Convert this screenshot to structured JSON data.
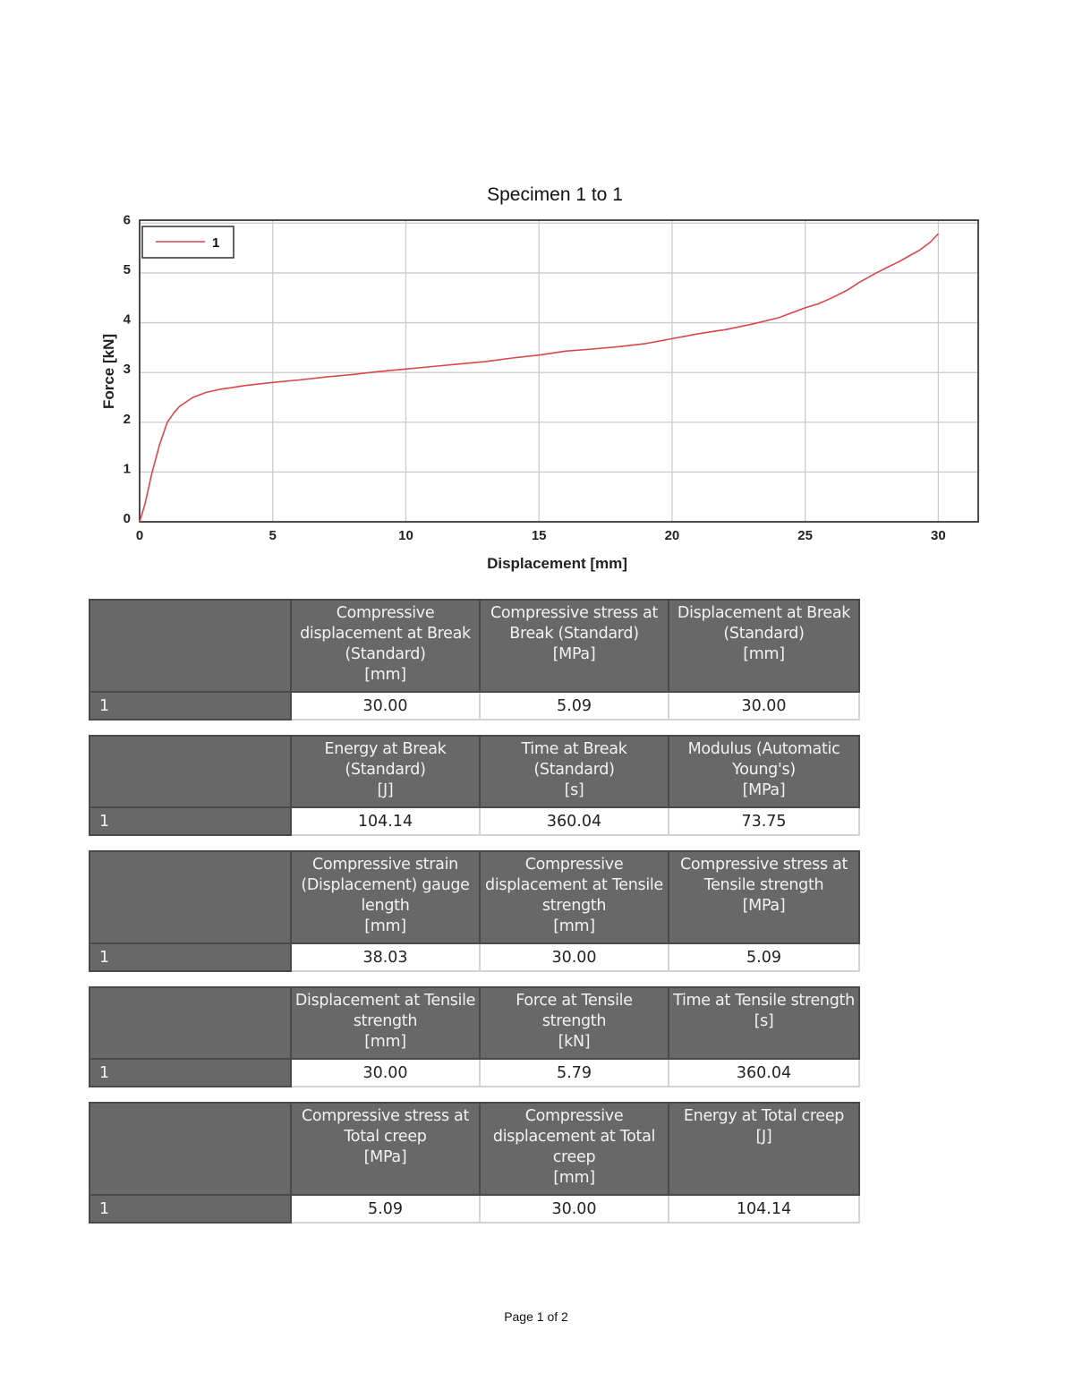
{
  "chart": {
    "title": "Specimen 1 to 1",
    "xlabel": "Displacement [mm]",
    "ylabel": "Force [kN]",
    "legend": [
      {
        "label": "1",
        "color": "#d9474b"
      }
    ]
  },
  "chart_data": {
    "type": "line",
    "title": "Specimen 1 to 1",
    "xlabel": "Displacement [mm]",
    "ylabel": "Force [kN]",
    "xlim": [
      0,
      31.5
    ],
    "ylim": [
      0,
      6.06
    ],
    "xticks": [
      0,
      5,
      10,
      15,
      20,
      25,
      30
    ],
    "yticks": [
      0,
      1,
      2,
      3,
      4,
      5,
      6
    ],
    "grid": true,
    "legend_position": "upper left",
    "series": [
      {
        "name": "1",
        "color": "#d9474b",
        "x": [
          0,
          0.2,
          0.47,
          0.75,
          1.04,
          1.3,
          1.5,
          2.0,
          2.5,
          3.0,
          4.0,
          5.0,
          6.0,
          7.0,
          8.0,
          9.0,
          10.0,
          11.0,
          12.0,
          13.0,
          14.0,
          15.0,
          16.0,
          17.0,
          18.0,
          19.0,
          20.0,
          21.0,
          22.0,
          23.0,
          24.0,
          25.0,
          25.5,
          26.0,
          26.6,
          27.0,
          27.6,
          28.0,
          28.5,
          28.9,
          29.3,
          29.7,
          30.0
        ],
        "y": [
          0,
          0.35,
          1.0,
          1.55,
          2.0,
          2.2,
          2.32,
          2.5,
          2.6,
          2.66,
          2.74,
          2.8,
          2.85,
          2.91,
          2.96,
          3.02,
          3.07,
          3.12,
          3.17,
          3.22,
          3.29,
          3.35,
          3.43,
          3.47,
          3.52,
          3.58,
          3.68,
          3.78,
          3.86,
          3.97,
          4.1,
          4.3,
          4.38,
          4.5,
          4.66,
          4.8,
          4.98,
          5.09,
          5.22,
          5.34,
          5.46,
          5.62,
          5.79
        ]
      }
    ]
  },
  "tables": [
    {
      "headers": [
        "",
        "Compressive displacement at Break (Standard)\n[mm]",
        "Compressive stress at Break (Standard)\n[MPa]",
        "Displacement at Break (Standard)\n[mm]"
      ],
      "rows": [
        [
          "1",
          "30.00",
          "5.09",
          "30.00"
        ]
      ]
    },
    {
      "headers": [
        "",
        "Energy at Break (Standard)\n[J]",
        "Time at Break (Standard)\n[s]",
        "Modulus (Automatic Young's)\n[MPa]"
      ],
      "rows": [
        [
          "1",
          "104.14",
          "360.04",
          "73.75"
        ]
      ]
    },
    {
      "headers": [
        "",
        "Compressive strain (Displacement) gauge length\n[mm]",
        "Compressive displacement at Tensile strength\n[mm]",
        "Compressive stress at Tensile strength\n[MPa]"
      ],
      "rows": [
        [
          "1",
          "38.03",
          "30.00",
          "5.09"
        ]
      ]
    },
    {
      "headers": [
        "",
        "Displacement at Tensile strength\n[mm]",
        "Force at Tensile strength\n[kN]",
        "Time at Tensile strength\n[s]"
      ],
      "rows": [
        [
          "1",
          "30.00",
          "5.79",
          "360.04"
        ]
      ]
    },
    {
      "headers": [
        "",
        "Compressive stress at Total creep\n[MPa]",
        "Compressive displacement at Total creep\n[mm]",
        "Energy at Total creep\n[J]"
      ],
      "rows": [
        [
          "1",
          "5.09",
          "30.00",
          "104.14"
        ]
      ]
    }
  ],
  "footer": {
    "page_label": "Page 1 of 2"
  }
}
